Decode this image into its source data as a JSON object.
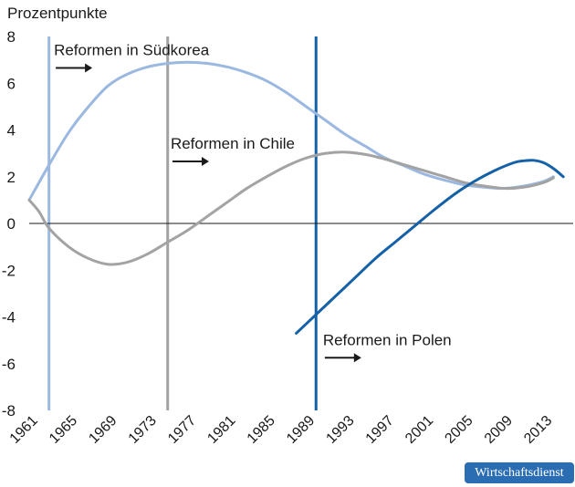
{
  "colors": {
    "korea": "#9ab8e0",
    "chile": "#a3a3a3",
    "poland": "#1561a8",
    "axis": "#1a1a1a",
    "arrow": "#1a1a1a",
    "badge_bg": "#2a6db3"
  },
  "badge": {
    "text": "Wirtschaftsdienst"
  },
  "chart_data": {
    "type": "line",
    "ylabel": "Prozentpunkte",
    "xlabel": "",
    "ylim": [
      -8,
      8
    ],
    "xlim": [
      1961,
      2016
    ],
    "yticks": [
      8,
      6,
      4,
      2,
      0,
      -2,
      -4,
      -6,
      -8
    ],
    "yticklabels": [
      "8",
      "6",
      "4",
      "2",
      "0",
      "-2",
      "-4",
      "-6",
      "-8"
    ],
    "xticks": [
      1961,
      1965,
      1969,
      1973,
      1977,
      1981,
      1985,
      1989,
      1993,
      1997,
      2001,
      2005,
      2009,
      2013
    ],
    "xticklabels": [
      "1961",
      "1965",
      "1969",
      "1973",
      "1977",
      "1981",
      "1985",
      "1989",
      "1993",
      "1997",
      "2001",
      "2005",
      "2009",
      "2013"
    ],
    "series": [
      {
        "key": "korea",
        "x": [
          1961,
          1963,
          1965,
          1967,
          1969,
          1971,
          1973,
          1975,
          1977,
          1979,
          1981,
          1983,
          1985,
          1987,
          1989,
          1991,
          1993,
          1995,
          1997,
          1999,
          2001,
          2003,
          2005,
          2007,
          2009,
          2011,
          2013,
          2014
        ],
        "values": [
          1.0,
          2.5,
          3.9,
          5.0,
          5.9,
          6.4,
          6.7,
          6.85,
          6.9,
          6.85,
          6.7,
          6.45,
          6.1,
          5.6,
          5.0,
          4.4,
          3.8,
          3.3,
          2.8,
          2.45,
          2.1,
          1.85,
          1.65,
          1.55,
          1.5,
          1.6,
          1.8,
          2.0
        ]
      },
      {
        "key": "chile",
        "x": [
          1961,
          1962,
          1963,
          1965,
          1967,
          1969,
          1971,
          1973,
          1975,
          1977,
          1979,
          1981,
          1983,
          1985,
          1987,
          1989,
          1991,
          1993,
          1995,
          1997,
          1999,
          2001,
          2003,
          2005,
          2007,
          2009,
          2011,
          2013,
          2014
        ],
        "values": [
          1.0,
          0.5,
          -0.2,
          -1.0,
          -1.5,
          -1.75,
          -1.65,
          -1.3,
          -0.8,
          -0.3,
          0.3,
          0.9,
          1.5,
          2.0,
          2.45,
          2.8,
          3.0,
          3.05,
          2.95,
          2.75,
          2.5,
          2.25,
          2.0,
          1.75,
          1.6,
          1.5,
          1.55,
          1.75,
          1.95
        ]
      },
      {
        "key": "poland",
        "x": [
          1988,
          1990,
          1992,
          1994,
          1996,
          1998,
          2000,
          2002,
          2004,
          2006,
          2008,
          2010,
          2011,
          2012,
          2013,
          2014,
          2015
        ],
        "values": [
          -4.7,
          -3.9,
          -3.1,
          -2.3,
          -1.5,
          -0.8,
          -0.1,
          0.6,
          1.25,
          1.8,
          2.25,
          2.6,
          2.68,
          2.7,
          2.6,
          2.35,
          2.0
        ]
      }
    ],
    "reform_lines": [
      {
        "key": "korea",
        "x": 1963
      },
      {
        "key": "chile",
        "x": 1975
      },
      {
        "key": "poland",
        "x": 1990
      }
    ],
    "annotations": [
      {
        "key": "korea",
        "text": "Reformen in Südkorea",
        "x": 1963.5,
        "y": 7.2
      },
      {
        "key": "chile",
        "text": "Reformen in Chile",
        "x": 1975.3,
        "y": 3.2
      },
      {
        "key": "poland",
        "text": "Reformen in Polen",
        "x": 1990.7,
        "y": -5.2
      }
    ]
  }
}
